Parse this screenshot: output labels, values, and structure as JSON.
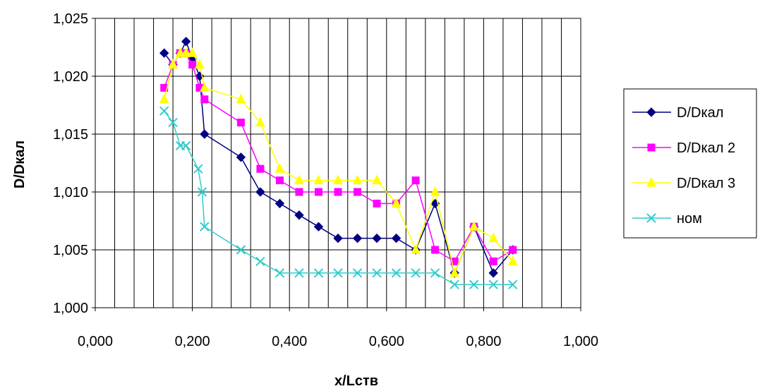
{
  "chart_data": {
    "type": "line",
    "xlabel": "x/Lств",
    "ylabel": "D/Dкал",
    "xlim": [
      0,
      1
    ],
    "ylim": [
      1.0,
      1.025
    ],
    "x_ticks": [
      "0,000",
      "0,200",
      "0,400",
      "0,600",
      "0,800",
      "1,000"
    ],
    "y_ticks": [
      "1,000",
      "1,005",
      "1,010",
      "1,015",
      "1,020",
      "1,025"
    ],
    "grid": true,
    "legend_position": "right",
    "series": [
      {
        "name": "D/Dкал",
        "color": "#000080",
        "marker": "diamond",
        "x": [
          0.142,
          0.16,
          0.175,
          0.187,
          0.2,
          0.215,
          0.225,
          0.3,
          0.34,
          0.38,
          0.42,
          0.46,
          0.5,
          0.54,
          0.58,
          0.62,
          0.66,
          0.7,
          0.74,
          0.78,
          0.82,
          0.86
        ],
        "y": [
          1.022,
          1.021,
          1.022,
          1.023,
          1.0215,
          1.02,
          1.015,
          1.013,
          1.01,
          1.009,
          1.008,
          1.007,
          1.006,
          1.006,
          1.006,
          1.006,
          1.005,
          1.009,
          1.003,
          1.007,
          1.003,
          1.005
        ]
      },
      {
        "name": "D/Dкал 2",
        "color": "#FF00FF",
        "marker": "square",
        "x": [
          0.142,
          0.16,
          0.175,
          0.187,
          0.2,
          0.215,
          0.225,
          0.3,
          0.34,
          0.38,
          0.42,
          0.46,
          0.5,
          0.54,
          0.58,
          0.62,
          0.66,
          0.7,
          0.74,
          0.78,
          0.82,
          0.86
        ],
        "y": [
          1.019,
          1.021,
          1.022,
          1.022,
          1.021,
          1.019,
          1.018,
          1.016,
          1.012,
          1.011,
          1.01,
          1.01,
          1.01,
          1.01,
          1.009,
          1.009,
          1.011,
          1.005,
          1.004,
          1.007,
          1.004,
          1.005
        ]
      },
      {
        "name": "D/Dкал 3",
        "color": "#FFFF00",
        "marker": "triangle",
        "x": [
          0.142,
          0.16,
          0.175,
          0.187,
          0.2,
          0.215,
          0.225,
          0.3,
          0.34,
          0.38,
          0.42,
          0.46,
          0.5,
          0.54,
          0.58,
          0.62,
          0.66,
          0.7,
          0.74,
          0.78,
          0.82,
          0.86
        ],
        "y": [
          1.018,
          1.021,
          1.022,
          1.022,
          1.022,
          1.021,
          1.019,
          1.018,
          1.016,
          1.012,
          1.011,
          1.011,
          1.011,
          1.011,
          1.011,
          1.009,
          1.005,
          1.01,
          1.003,
          1.007,
          1.006,
          1.004
        ]
      },
      {
        "name": "ном",
        "color": "#33CCCC",
        "marker": "x",
        "x": [
          0.142,
          0.16,
          0.175,
          0.187,
          0.212,
          0.22,
          0.225,
          0.3,
          0.34,
          0.38,
          0.42,
          0.46,
          0.5,
          0.54,
          0.58,
          0.62,
          0.66,
          0.7,
          0.74,
          0.78,
          0.82,
          0.86
        ],
        "y": [
          1.017,
          1.016,
          1.014,
          1.014,
          1.012,
          1.01,
          1.007,
          1.005,
          1.004,
          1.003,
          1.003,
          1.003,
          1.003,
          1.003,
          1.003,
          1.003,
          1.003,
          1.003,
          1.002,
          1.002,
          1.002,
          1.002
        ]
      }
    ]
  }
}
